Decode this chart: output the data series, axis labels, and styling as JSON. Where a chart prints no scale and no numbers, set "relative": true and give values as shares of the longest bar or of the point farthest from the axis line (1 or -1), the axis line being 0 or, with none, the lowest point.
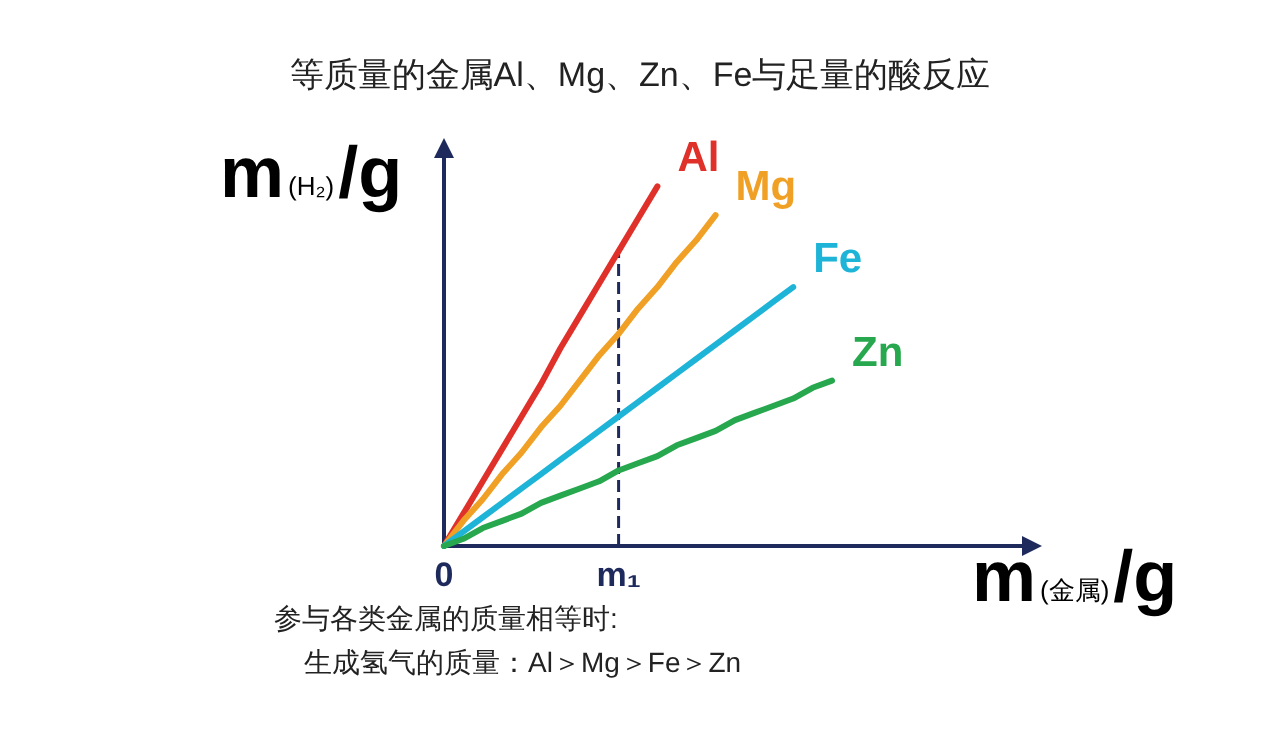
{
  "chart_data": {
    "type": "line",
    "relative": true,
    "title": "等质量的金属Al、Mg、Zn、Fe与足量的酸反应",
    "xlabel": "m$_{(金属)}$/g",
    "ylabel": "m$_{(H₂)}$/g",
    "categories": [
      "0",
      null,
      null,
      null,
      null,
      null,
      null,
      null,
      null,
      "m₁",
      null,
      null,
      null,
      null,
      null,
      null,
      null,
      null,
      null,
      null,
      null,
      null,
      null,
      null,
      null,
      null,
      null,
      null,
      null,
      null,
      null
    ],
    "series": [
      {
        "name": "Al",
        "color": "#e0302a",
        "values": [
          0,
          0.09,
          0.18,
          0.27,
          0.36,
          0.45,
          0.55,
          0.64,
          0.73,
          0.82,
          0.91,
          1,
          null,
          null,
          null,
          null,
          null,
          null,
          null,
          null,
          null,
          null,
          null,
          null,
          null,
          null,
          null,
          null,
          null,
          null,
          null
        ]
      },
      {
        "name": "Mg",
        "color": "#f0a024",
        "values": [
          0,
          0.07,
          0.13,
          0.2,
          0.26,
          0.33,
          0.39,
          0.46,
          0.53,
          0.59,
          0.66,
          0.72,
          0.79,
          0.85,
          0.92,
          null,
          null,
          null,
          null,
          null,
          null,
          null,
          null,
          null,
          null,
          null,
          null,
          null,
          null,
          null,
          null
        ]
      },
      {
        "name": "Fe",
        "color": "#1eb4d8",
        "values": [
          0,
          0.04,
          0.08,
          0.12,
          0.16,
          0.2,
          0.24,
          0.28,
          0.32,
          0.36,
          0.4,
          0.44,
          0.48,
          0.52,
          0.56,
          0.6,
          0.64,
          0.68,
          0.72,
          null,
          null,
          null,
          null,
          null,
          null,
          null,
          null,
          null,
          null,
          null,
          null
        ]
      },
      {
        "name": "Zn",
        "color": "#27a84e",
        "values": [
          0,
          0.02,
          0.05,
          0.07,
          0.09,
          0.12,
          0.14,
          0.16,
          0.18,
          0.21,
          0.23,
          0.25,
          0.28,
          0.3,
          0.32,
          0.35,
          0.37,
          0.39,
          0.41,
          0.44,
          0.46,
          null,
          null,
          null,
          null,
          null,
          null,
          null,
          null,
          null,
          null
        ]
      }
    ],
    "ref_lines": [
      {
        "axis": "x",
        "value": "m₁",
        "color": "#1f2a5c",
        "line_style": "dashed"
      }
    ],
    "annotations": [
      "参与各类金属的质量相等时:",
      "生成氢气的质量：Al＞Mg＞Fe＞Zn"
    ],
    "grid": false,
    "legend": false,
    "marker": "none",
    "line_style": "solid"
  }
}
